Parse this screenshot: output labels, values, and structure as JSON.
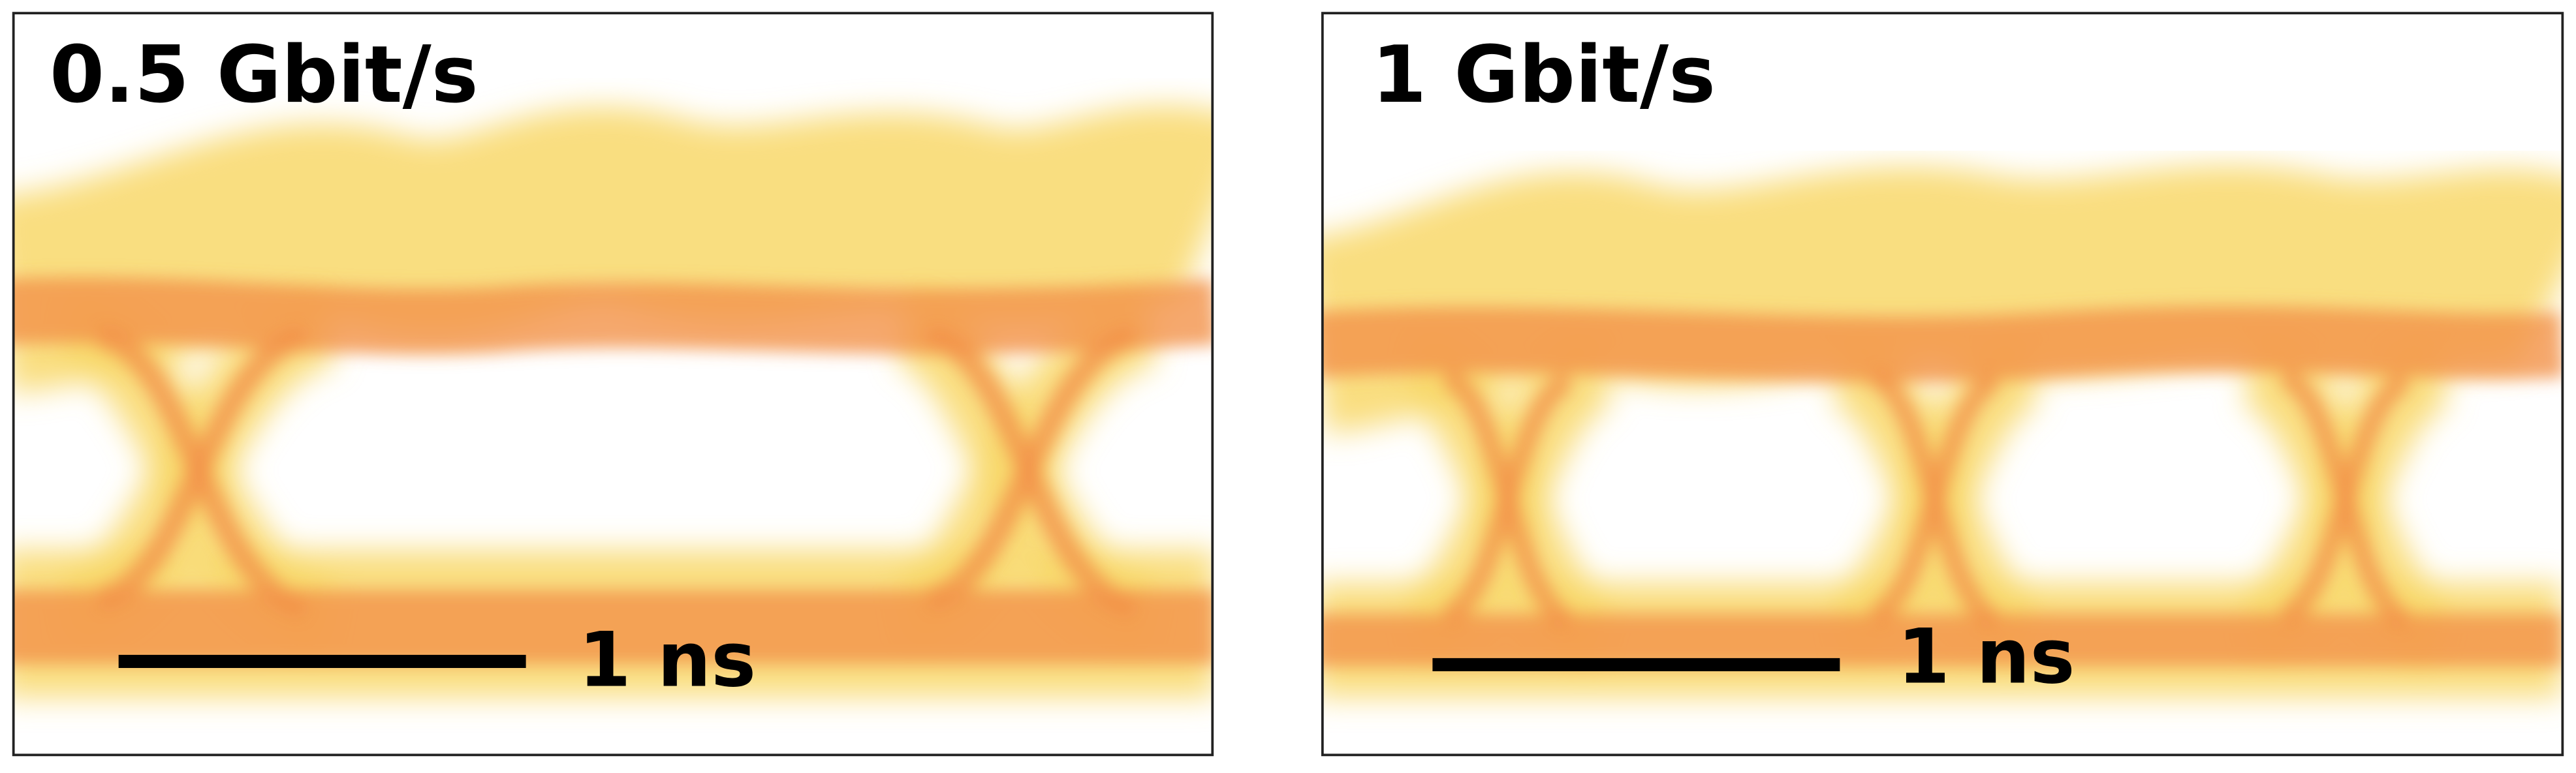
{
  "panels": [
    {
      "title": "0.5 Gbit/s",
      "scale_label": "1 ns"
    },
    {
      "title": "1 Gbit/s",
      "scale_label": "1 ns"
    }
  ]
}
